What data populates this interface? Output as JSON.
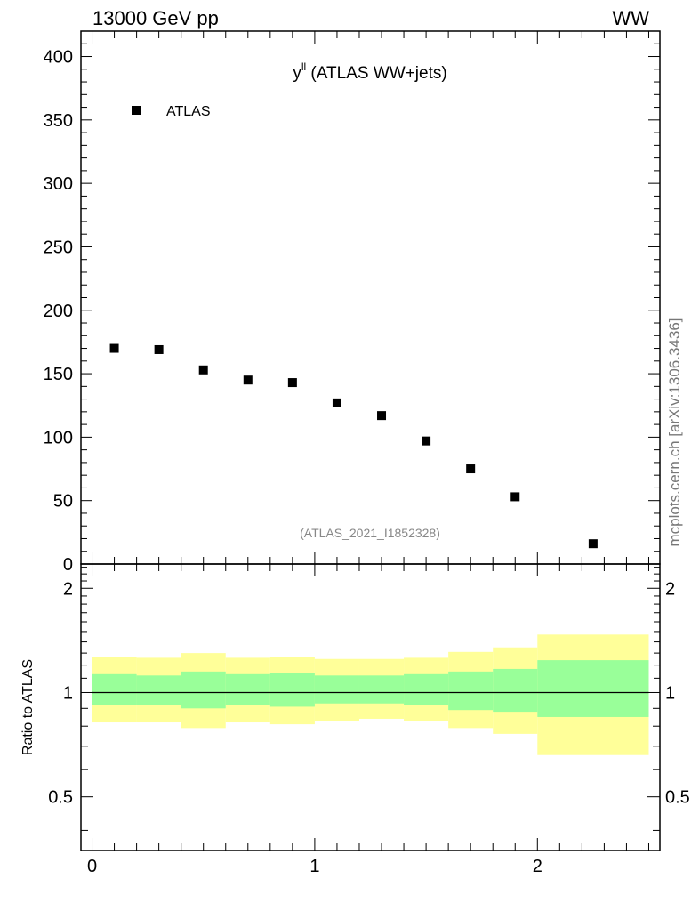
{
  "header": {
    "left_label": "13000 GeV pp",
    "right_label": "WW"
  },
  "side_label": "mcplots.cern.ch [arXiv:1306.3436]",
  "analysis_tag": "(ATLAS_2021_I1852328)",
  "plot_title": {
    "main": "y",
    "superscript": "ll",
    "rest": " (ATLAS WW+jets)"
  },
  "legend": {
    "position": "top-left",
    "entries": [
      {
        "label": "ATLAS",
        "marker": "filled-square"
      }
    ]
  },
  "chart_data": [
    {
      "type": "scatter",
      "name": "main-panel",
      "xlim": [
        -0.05,
        2.55
      ],
      "ylim": [
        0,
        420
      ],
      "y_ticks": [
        0,
        50,
        100,
        150,
        200,
        250,
        300,
        350,
        400
      ],
      "y_tick_labels": [
        "0",
        "50",
        "100",
        "150",
        "200",
        "250",
        "300",
        "350",
        "400"
      ],
      "series": [
        {
          "name": "ATLAS",
          "x": [
            0.1,
            0.3,
            0.5,
            0.7,
            0.9,
            1.1,
            1.3,
            1.5,
            1.7,
            1.9,
            2.25
          ],
          "values": [
            170,
            169,
            153,
            145,
            143,
            127,
            117,
            97,
            75,
            53,
            16
          ]
        }
      ]
    },
    {
      "type": "area",
      "name": "ratio-panel",
      "ylabel": "Ratio to ATLAS",
      "xlim": [
        -0.05,
        2.55
      ],
      "ylim": [
        0.35,
        2.35
      ],
      "y_ticks": [
        0.5,
        1,
        2
      ],
      "y_tick_labels": [
        "0.5",
        "1",
        "2"
      ],
      "x_ticks": [
        0,
        1,
        2
      ],
      "x_tick_labels": [
        "0",
        "1",
        "2"
      ],
      "reference_line": 1,
      "bin_edges": [
        0,
        0.2,
        0.4,
        0.6,
        0.8,
        1.0,
        1.2,
        1.4,
        1.6,
        1.8,
        2.0,
        2.5
      ],
      "bands": [
        {
          "name": "stat",
          "color": "#99ff99",
          "low": [
            0.92,
            0.92,
            0.9,
            0.92,
            0.91,
            0.93,
            0.93,
            0.92,
            0.89,
            0.88,
            0.85
          ],
          "high": [
            1.13,
            1.12,
            1.15,
            1.13,
            1.14,
            1.12,
            1.12,
            1.13,
            1.15,
            1.17,
            1.24
          ]
        },
        {
          "name": "total",
          "color": "#ffff99",
          "low": [
            0.82,
            0.82,
            0.79,
            0.82,
            0.81,
            0.83,
            0.84,
            0.83,
            0.79,
            0.76,
            0.66
          ],
          "high": [
            1.27,
            1.26,
            1.3,
            1.26,
            1.27,
            1.25,
            1.25,
            1.26,
            1.31,
            1.35,
            1.47
          ]
        }
      ]
    }
  ]
}
